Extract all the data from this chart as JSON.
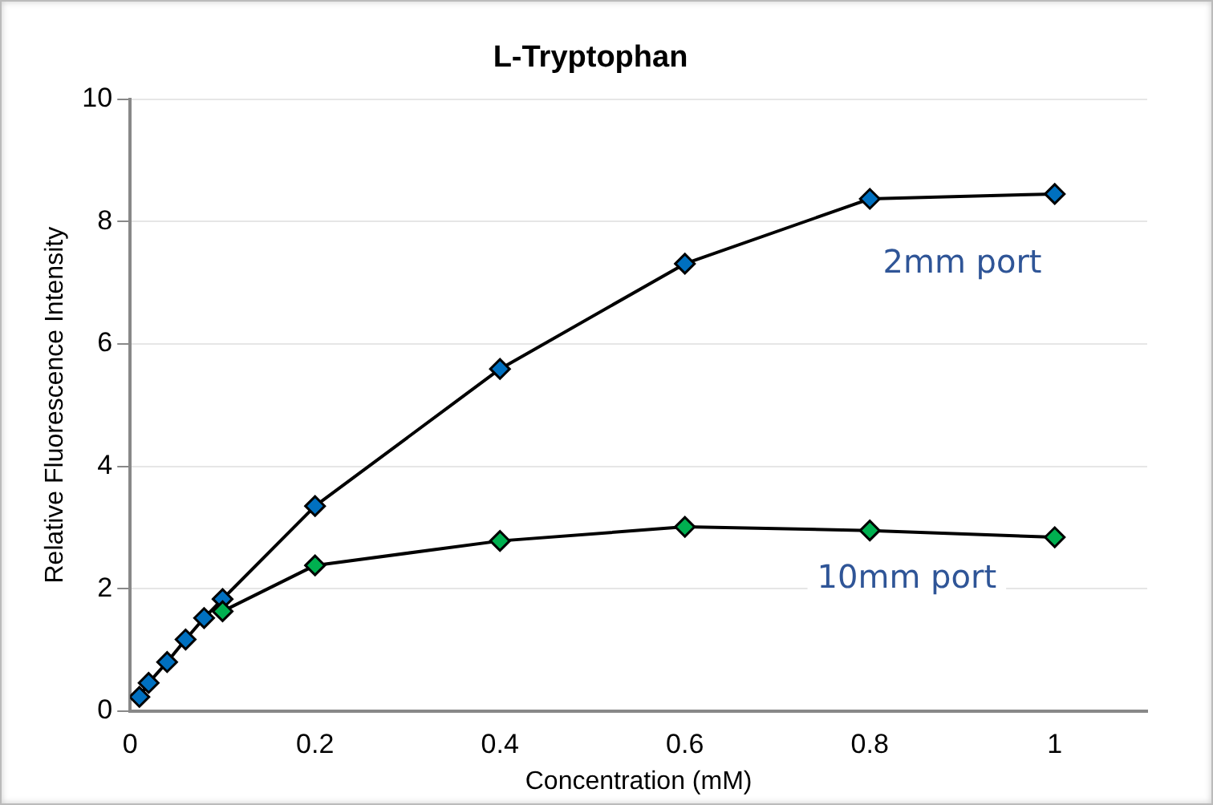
{
  "chart_data": {
    "type": "line",
    "title": "L-Tryptophan",
    "xlabel": "Concentration (mM)",
    "ylabel": "Relative Fluorescence Intensity",
    "x": [
      0.01,
      0.02,
      0.04,
      0.06,
      0.08,
      0.1,
      0.2,
      0.4,
      0.6,
      0.8,
      1
    ],
    "series": [
      {
        "name": "10mm port",
        "color": "#00b050",
        "values": [
          null,
          null,
          null,
          null,
          null,
          1.63,
          2.38,
          2.78,
          3.01,
          2.95,
          2.84
        ]
      },
      {
        "name": "2mm port",
        "color": "#0070c0",
        "values": [
          0.23,
          0.46,
          0.8,
          1.17,
          1.52,
          1.83,
          3.35,
          5.59,
          7.31,
          8.37,
          8.45
        ]
      }
    ],
    "xlim": [
      0,
      1.1
    ],
    "xticks": [
      0,
      0.2,
      0.4,
      0.6,
      0.8,
      1
    ],
    "ylim": [
      0,
      10
    ],
    "yticks": [
      0,
      2,
      4,
      6,
      8,
      10
    ],
    "grid": "y",
    "legend": false,
    "marker": "diamond",
    "line_style": "solid"
  }
}
